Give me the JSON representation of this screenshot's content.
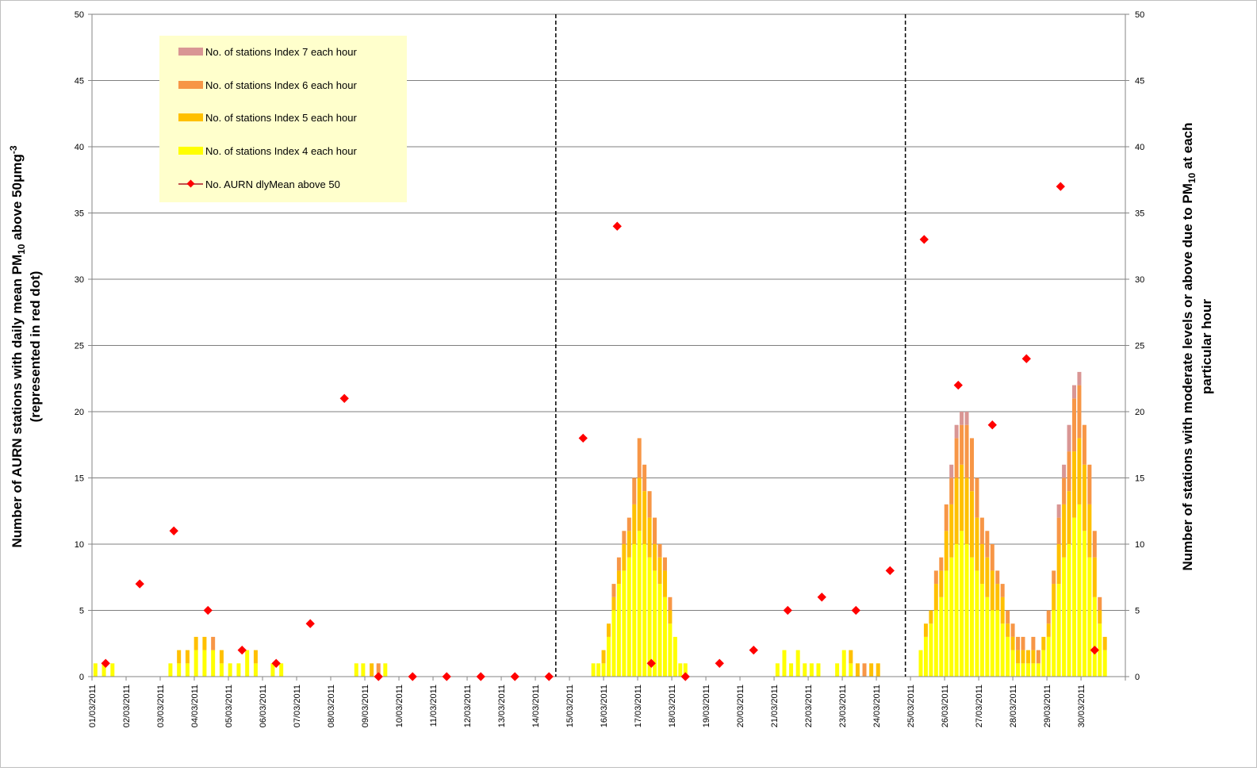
{
  "chart_data": {
    "type": "bar",
    "series_types": {
      "bars": "stacked-bar",
      "dots": "scatter"
    },
    "left_axis": {
      "title_line1_pre": "Number of AURN stations  with daily mean PM",
      "title_line1_sub": "10",
      "title_line1_mid": " above 50μmg",
      "title_line1_sup": "-3",
      "title_line2": "(represented in red dot)",
      "ylim": [
        0,
        50
      ],
      "ticks": [
        "0",
        "5",
        "10",
        "15",
        "20",
        "25",
        "30",
        "35",
        "40",
        "45",
        "50"
      ]
    },
    "right_axis": {
      "title_line1_pre": "Number of stations with moderate levels  or above due to PM",
      "title_line1_sub": "10",
      "title_line1_post": " at each",
      "title_line2": "particular hour",
      "ylim": [
        0,
        50
      ],
      "ticks": [
        "0",
        "5",
        "10",
        "15",
        "20",
        "25",
        "30",
        "35",
        "40",
        "45",
        "50"
      ]
    },
    "x_categories": [
      "01/03/2011",
      "02/03/2011",
      "03/03/2011",
      "04/03/2011",
      "05/03/2011",
      "06/03/2011",
      "07/03/2011",
      "08/03/2011",
      "09/03/2011",
      "10/03/2011",
      "11/03/2011",
      "12/03/2011",
      "13/03/2011",
      "14/03/2011",
      "15/03/2011",
      "16/03/2011",
      "17/03/2011",
      "18/03/2011",
      "19/03/2011",
      "20/03/2011",
      "21/03/2011",
      "22/03/2011",
      "23/03/2011",
      "24/03/2011",
      "25/03/2011",
      "26/03/2011",
      "27/03/2011",
      "28/03/2011",
      "29/03/2011",
      "30/03/2011"
    ],
    "x_range_days": [
      0,
      30.3
    ],
    "period_dividers_at_day": [
      13.6,
      23.85
    ],
    "gridlines": true,
    "legend_placement": "top-left",
    "colors": {
      "index7": "#d99694",
      "index6": "#f79646",
      "index5": "#ffc000",
      "index4": "#ffff00",
      "dots": "#ff0000",
      "legend_bg": "#ffffcc",
      "gridline": "#7f7f7f",
      "axis": "#868686",
      "divider": "#000000"
    },
    "legend": [
      {
        "label": "No. of stations Index 7 each hour",
        "color_key": "index7",
        "kind": "bar"
      },
      {
        "label": "No. of stations Index 6 each hour",
        "color_key": "index6",
        "kind": "bar"
      },
      {
        "label": "No. of stations Index 5 each hour",
        "color_key": "index5",
        "kind": "bar"
      },
      {
        "label": "No. of stations Index 4 each hour",
        "color_key": "index4",
        "kind": "bar"
      },
      {
        "label": "No. AURN dlyMean above 50",
        "color_key": "dots",
        "kind": "marker"
      }
    ],
    "hourly_bars": [
      {
        "day": 0.1,
        "i4": 1,
        "i5": 0,
        "i6": 0,
        "i7": 0
      },
      {
        "day": 0.35,
        "i4": 1,
        "i5": 0,
        "i6": 0,
        "i7": 0
      },
      {
        "day": 0.6,
        "i4": 1,
        "i5": 0,
        "i6": 0,
        "i7": 0
      },
      {
        "day": 2.3,
        "i4": 1,
        "i5": 0,
        "i6": 0,
        "i7": 0
      },
      {
        "day": 2.55,
        "i4": 1,
        "i5": 1,
        "i6": 0,
        "i7": 0
      },
      {
        "day": 2.8,
        "i4": 1,
        "i5": 1,
        "i6": 0,
        "i7": 0
      },
      {
        "day": 3.05,
        "i4": 2,
        "i5": 1,
        "i6": 0,
        "i7": 0
      },
      {
        "day": 3.3,
        "i4": 2,
        "i5": 1,
        "i6": 0,
        "i7": 0
      },
      {
        "day": 3.55,
        "i4": 2,
        "i5": 0,
        "i6": 1,
        "i7": 0
      },
      {
        "day": 3.8,
        "i4": 1,
        "i5": 1,
        "i6": 0,
        "i7": 0
      },
      {
        "day": 4.05,
        "i4": 1,
        "i5": 0,
        "i6": 0,
        "i7": 0
      },
      {
        "day": 4.3,
        "i4": 1,
        "i5": 0,
        "i6": 0,
        "i7": 0
      },
      {
        "day": 4.55,
        "i4": 2,
        "i5": 0,
        "i6": 0,
        "i7": 0
      },
      {
        "day": 4.8,
        "i4": 1,
        "i5": 1,
        "i6": 0,
        "i7": 0
      },
      {
        "day": 5.3,
        "i4": 1,
        "i5": 0,
        "i6": 0,
        "i7": 0
      },
      {
        "day": 5.55,
        "i4": 1,
        "i5": 0,
        "i6": 0,
        "i7": 0
      },
      {
        "day": 7.75,
        "i4": 1,
        "i5": 0,
        "i6": 0,
        "i7": 0
      },
      {
        "day": 7.95,
        "i4": 1,
        "i5": 0,
        "i6": 0,
        "i7": 0
      },
      {
        "day": 8.2,
        "i4": 0,
        "i5": 1,
        "i6": 0,
        "i7": 0
      },
      {
        "day": 8.4,
        "i4": 0,
        "i5": 0,
        "i6": 1,
        "i7": 0
      },
      {
        "day": 8.6,
        "i4": 1,
        "i5": 0,
        "i6": 0,
        "i7": 0
      },
      {
        "day": 14.7,
        "i4": 1,
        "i5": 0,
        "i6": 0,
        "i7": 0
      },
      {
        "day": 14.85,
        "i4": 1,
        "i5": 0,
        "i6": 0,
        "i7": 0
      },
      {
        "day": 15.0,
        "i4": 1,
        "i5": 1,
        "i6": 0,
        "i7": 0
      },
      {
        "day": 15.15,
        "i4": 3,
        "i5": 1,
        "i6": 0,
        "i7": 0
      },
      {
        "day": 15.3,
        "i4": 5,
        "i5": 1,
        "i6": 1,
        "i7": 0
      },
      {
        "day": 15.45,
        "i4": 7,
        "i5": 1,
        "i6": 1,
        "i7": 0
      },
      {
        "day": 15.6,
        "i4": 8,
        "i5": 2,
        "i6": 1,
        "i7": 0
      },
      {
        "day": 15.75,
        "i4": 9,
        "i5": 2,
        "i6": 1,
        "i7": 0
      },
      {
        "day": 15.9,
        "i4": 10,
        "i5": 3,
        "i6": 2,
        "i7": 0
      },
      {
        "day": 16.05,
        "i4": 11,
        "i5": 4,
        "i6": 3,
        "i7": 0
      },
      {
        "day": 16.2,
        "i4": 10,
        "i5": 4,
        "i6": 2,
        "i7": 0
      },
      {
        "day": 16.35,
        "i4": 9,
        "i5": 3,
        "i6": 2,
        "i7": 0
      },
      {
        "day": 16.5,
        "i4": 8,
        "i5": 2,
        "i6": 2,
        "i7": 0
      },
      {
        "day": 16.65,
        "i4": 7,
        "i5": 2,
        "i6": 1,
        "i7": 0
      },
      {
        "day": 16.8,
        "i4": 6,
        "i5": 2,
        "i6": 1,
        "i7": 0
      },
      {
        "day": 16.95,
        "i4": 4,
        "i5": 1,
        "i6": 1,
        "i7": 0
      },
      {
        "day": 17.1,
        "i4": 3,
        "i5": 0,
        "i6": 0,
        "i7": 0
      },
      {
        "day": 17.25,
        "i4": 1,
        "i5": 0,
        "i6": 0,
        "i7": 0
      },
      {
        "day": 17.4,
        "i4": 1,
        "i5": 0,
        "i6": 0,
        "i7": 0
      },
      {
        "day": 20.1,
        "i4": 1,
        "i5": 0,
        "i6": 0,
        "i7": 0
      },
      {
        "day": 20.3,
        "i4": 2,
        "i5": 0,
        "i6": 0,
        "i7": 0
      },
      {
        "day": 20.5,
        "i4": 1,
        "i5": 0,
        "i6": 0,
        "i7": 0
      },
      {
        "day": 20.7,
        "i4": 2,
        "i5": 0,
        "i6": 0,
        "i7": 0
      },
      {
        "day": 20.9,
        "i4": 1,
        "i5": 0,
        "i6": 0,
        "i7": 0
      },
      {
        "day": 21.1,
        "i4": 1,
        "i5": 0,
        "i6": 0,
        "i7": 0
      },
      {
        "day": 21.3,
        "i4": 1,
        "i5": 0,
        "i6": 0,
        "i7": 0
      },
      {
        "day": 21.85,
        "i4": 1,
        "i5": 0,
        "i6": 0,
        "i7": 0
      },
      {
        "day": 22.05,
        "i4": 2,
        "i5": 0,
        "i6": 0,
        "i7": 0
      },
      {
        "day": 22.25,
        "i4": 1,
        "i5": 1,
        "i6": 0,
        "i7": 0
      },
      {
        "day": 22.45,
        "i4": 0,
        "i5": 1,
        "i6": 0,
        "i7": 0
      },
      {
        "day": 22.65,
        "i4": 0,
        "i5": 0,
        "i6": 1,
        "i7": 0
      },
      {
        "day": 22.85,
        "i4": 0,
        "i5": 1,
        "i6": 0,
        "i7": 0
      },
      {
        "day": 23.05,
        "i4": 0,
        "i5": 1,
        "i6": 0,
        "i7": 0
      },
      {
        "day": 24.3,
        "i4": 2,
        "i5": 0,
        "i6": 0,
        "i7": 0
      },
      {
        "day": 24.45,
        "i4": 3,
        "i5": 1,
        "i6": 0,
        "i7": 0
      },
      {
        "day": 24.6,
        "i4": 4,
        "i5": 1,
        "i6": 0,
        "i7": 0
      },
      {
        "day": 24.75,
        "i4": 5,
        "i5": 2,
        "i6": 1,
        "i7": 0
      },
      {
        "day": 24.9,
        "i4": 6,
        "i5": 2,
        "i6": 1,
        "i7": 0
      },
      {
        "day": 25.05,
        "i4": 8,
        "i5": 3,
        "i6": 2,
        "i7": 0
      },
      {
        "day": 25.2,
        "i4": 9,
        "i5": 4,
        "i6": 2,
        "i7": 1
      },
      {
        "day": 25.35,
        "i4": 10,
        "i5": 5,
        "i6": 3,
        "i7": 1
      },
      {
        "day": 25.5,
        "i4": 11,
        "i5": 5,
        "i6": 3,
        "i7": 1
      },
      {
        "day": 25.65,
        "i4": 10,
        "i5": 5,
        "i6": 4,
        "i7": 1
      },
      {
        "day": 25.8,
        "i4": 9,
        "i5": 5,
        "i6": 4,
        "i7": 0
      },
      {
        "day": 25.95,
        "i4": 8,
        "i5": 4,
        "i6": 3,
        "i7": 0
      },
      {
        "day": 26.1,
        "i4": 7,
        "i5": 3,
        "i6": 2,
        "i7": 0
      },
      {
        "day": 26.25,
        "i4": 6,
        "i5": 3,
        "i6": 2,
        "i7": 0
      },
      {
        "day": 26.4,
        "i4": 5,
        "i5": 3,
        "i6": 2,
        "i7": 0
      },
      {
        "day": 26.55,
        "i4": 5,
        "i5": 2,
        "i6": 1,
        "i7": 0
      },
      {
        "day": 26.7,
        "i4": 4,
        "i5": 2,
        "i6": 1,
        "i7": 0
      },
      {
        "day": 26.85,
        "i4": 3,
        "i5": 1,
        "i6": 1,
        "i7": 0
      },
      {
        "day": 27.0,
        "i4": 2,
        "i5": 1,
        "i6": 1,
        "i7": 0
      },
      {
        "day": 27.15,
        "i4": 1,
        "i5": 1,
        "i6": 1,
        "i7": 0
      },
      {
        "day": 27.3,
        "i4": 1,
        "i5": 1,
        "i6": 1,
        "i7": 0
      },
      {
        "day": 27.45,
        "i4": 1,
        "i5": 1,
        "i6": 0,
        "i7": 0
      },
      {
        "day": 27.6,
        "i4": 1,
        "i5": 1,
        "i6": 1,
        "i7": 0
      },
      {
        "day": 27.75,
        "i4": 1,
        "i5": 0,
        "i6": 1,
        "i7": 0
      },
      {
        "day": 27.9,
        "i4": 2,
        "i5": 1,
        "i6": 0,
        "i7": 0
      },
      {
        "day": 28.05,
        "i4": 3,
        "i5": 1,
        "i6": 1,
        "i7": 0
      },
      {
        "day": 28.2,
        "i4": 5,
        "i5": 2,
        "i6": 1,
        "i7": 0
      },
      {
        "day": 28.35,
        "i4": 7,
        "i5": 3,
        "i6": 2,
        "i7": 1
      },
      {
        "day": 28.5,
        "i4": 9,
        "i5": 4,
        "i6": 2,
        "i7": 1
      },
      {
        "day": 28.65,
        "i4": 10,
        "i5": 4,
        "i6": 3,
        "i7": 2
      },
      {
        "day": 28.8,
        "i4": 12,
        "i5": 5,
        "i6": 4,
        "i7": 1
      },
      {
        "day": 28.95,
        "i4": 13,
        "i5": 5,
        "i6": 4,
        "i7": 1
      },
      {
        "day": 29.1,
        "i4": 11,
        "i5": 5,
        "i6": 3,
        "i7": 0
      },
      {
        "day": 29.25,
        "i4": 9,
        "i5": 4,
        "i6": 3,
        "i7": 0
      },
      {
        "day": 29.4,
        "i4": 6,
        "i5": 3,
        "i6": 2,
        "i7": 0
      },
      {
        "day": 29.55,
        "i4": 4,
        "i5": 1,
        "i6": 1,
        "i7": 0
      },
      {
        "day": 29.7,
        "i4": 2,
        "i5": 1,
        "i6": 0,
        "i7": 0
      }
    ],
    "daily_dots": [
      {
        "day": 0.4,
        "value": 1
      },
      {
        "day": 1.4,
        "value": 7
      },
      {
        "day": 2.4,
        "value": 11
      },
      {
        "day": 3.4,
        "value": 5
      },
      {
        "day": 4.4,
        "value": 2
      },
      {
        "day": 5.4,
        "value": 1
      },
      {
        "day": 6.4,
        "value": 4
      },
      {
        "day": 7.4,
        "value": 21
      },
      {
        "day": 8.4,
        "value": 0
      },
      {
        "day": 9.4,
        "value": 0
      },
      {
        "day": 10.4,
        "value": 0
      },
      {
        "day": 11.4,
        "value": 0
      },
      {
        "day": 12.4,
        "value": 0
      },
      {
        "day": 13.4,
        "value": 0
      },
      {
        "day": 14.4,
        "value": 18
      },
      {
        "day": 15.4,
        "value": 34
      },
      {
        "day": 16.4,
        "value": 1
      },
      {
        "day": 17.4,
        "value": 0
      },
      {
        "day": 18.4,
        "value": 1
      },
      {
        "day": 19.4,
        "value": 2
      },
      {
        "day": 20.4,
        "value": 5
      },
      {
        "day": 21.4,
        "value": 6
      },
      {
        "day": 22.4,
        "value": 5
      },
      {
        "day": 23.4,
        "value": 8
      },
      {
        "day": 24.4,
        "value": 33
      },
      {
        "day": 25.4,
        "value": 22
      },
      {
        "day": 26.4,
        "value": 19
      },
      {
        "day": 27.4,
        "value": 24
      },
      {
        "day": 28.4,
        "value": 37
      },
      {
        "day": 29.4,
        "value": 2
      }
    ]
  }
}
